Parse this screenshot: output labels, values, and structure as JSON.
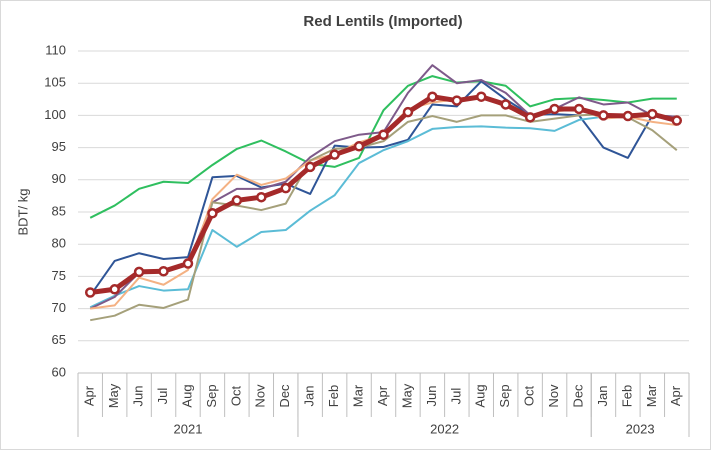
{
  "chart_data": {
    "type": "line",
    "title": "Red Lentils (Imported)",
    "y_label": "BDT/ kg",
    "categories": [
      "Apr",
      "May",
      "Jun",
      "Jul",
      "Aug",
      "Sep",
      "Oct",
      "Nov",
      "Dec",
      "Jan",
      "Feb",
      "Mar",
      "Apr",
      "May",
      "Jun",
      "Jul",
      "Aug",
      "Sep",
      "Oct",
      "Nov",
      "Dec",
      "Jan",
      "Feb",
      "Mar",
      "Apr"
    ],
    "category_groups": [
      {
        "label": "2021",
        "size": 9
      },
      {
        "label": "2022",
        "size": 12
      },
      {
        "label": "2023",
        "size": 4
      }
    ],
    "ylim": [
      60,
      110
    ],
    "yticks": [
      60,
      65,
      70,
      75,
      80,
      85,
      90,
      95,
      100,
      105,
      110
    ],
    "grid": true,
    "series": [
      {
        "color": "#2fbf5f",
        "values": [
          84.1,
          86,
          88.6,
          89.7,
          89.5,
          92.3,
          94.8,
          96.1,
          94.4,
          92.5,
          92,
          93.4,
          100.8,
          104.6,
          106.1,
          105.1,
          105.3,
          104.6,
          101.4,
          102.5,
          102.7,
          102.4,
          102,
          102.6,
          102.6
        ]
      },
      {
        "color": "#2f5597",
        "values": [
          72,
          77.4,
          78.6,
          77.7,
          78,
          90.4,
          90.6,
          88.8,
          89.4,
          87.8,
          95.3,
          95,
          95.1,
          96.2,
          101.7,
          101.4,
          105.3,
          102.5,
          100.1,
          100.2,
          100,
          95,
          93.4,
          100,
          99.8
        ]
      },
      {
        "color": "#5bbcd6",
        "values": [
          70.2,
          72,
          73.5,
          72.8,
          73,
          82.2,
          79.6,
          81.9,
          82.2,
          85.2,
          87.6,
          92.6,
          94.6,
          96,
          97.9,
          98.2,
          98.3,
          98.1,
          98,
          97.6,
          99.3,
          99.8,
          100,
          100.2,
          99.3
        ]
      },
      {
        "color": "#7e5a8a",
        "values": [
          70,
          71.8,
          75.6,
          75.8,
          76.8,
          86.5,
          88.6,
          88.6,
          89.7,
          93.5,
          96,
          97,
          97.4,
          103.5,
          107.8,
          105,
          105.5,
          103.5,
          100,
          101,
          102.8,
          101.7,
          102,
          100,
          99.8
        ]
      },
      {
        "color": "#f4b183",
        "values": [
          70,
          70.5,
          74.8,
          73.7,
          76,
          87,
          90.8,
          89.2,
          90.2,
          93,
          94,
          95.8,
          97,
          101,
          102,
          102.5,
          103,
          101.3,
          99.8,
          100.6,
          101,
          99.5,
          99.8,
          99,
          98.5
        ]
      },
      {
        "color": "#a5a07a",
        "values": [
          68.2,
          68.9,
          70.6,
          70.1,
          71.4,
          86.5,
          86,
          85.3,
          86.3,
          93,
          94.8,
          95,
          96,
          99,
          99.9,
          99,
          100,
          100,
          99,
          99.5,
          100,
          100.2,
          99.7,
          97.7,
          94.6
        ]
      },
      {
        "color": "#a52a2a",
        "markers": true,
        "values": [
          72.5,
          73,
          75.7,
          75.8,
          77,
          84.8,
          86.8,
          87.3,
          88.7,
          92,
          93.9,
          95.2,
          97,
          100.5,
          102.9,
          102.3,
          102.9,
          101.7,
          99.7,
          101,
          101,
          100,
          99.9,
          100.2,
          99.2
        ]
      }
    ]
  }
}
